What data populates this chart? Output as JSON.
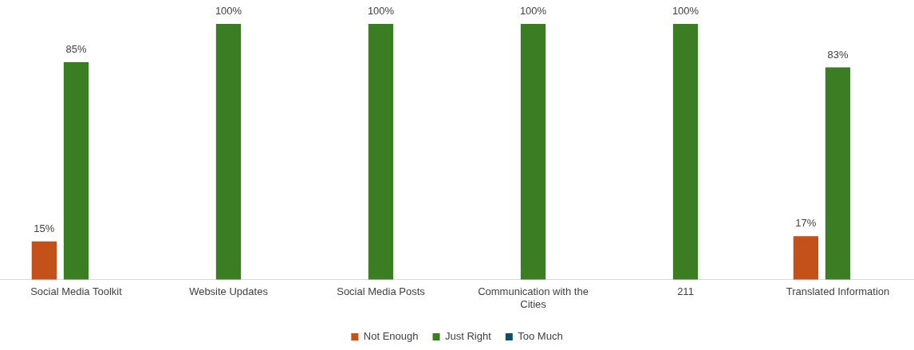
{
  "chart_data": {
    "type": "bar",
    "categories": [
      "Social Media Toolkit",
      "Website Updates",
      "Social Media Posts",
      "Communication with the Cities",
      "211",
      "Translated Information"
    ],
    "series": [
      {
        "name": "Not Enough",
        "color": "#c4501a",
        "values": [
          15,
          null,
          null,
          null,
          null,
          17
        ],
        "value_labels": [
          "15%",
          null,
          null,
          null,
          null,
          "17%"
        ]
      },
      {
        "name": "Just Right",
        "color": "#3b7d23",
        "values": [
          85,
          100,
          100,
          100,
          100,
          83
        ],
        "value_labels": [
          "85%",
          "100%",
          "100%",
          "100%",
          "100%",
          "83%"
        ]
      },
      {
        "name": "Too Much",
        "color": "#0f4f68",
        "values": [
          null,
          null,
          null,
          null,
          null,
          null
        ],
        "value_labels": [
          null,
          null,
          null,
          null,
          null,
          null
        ]
      }
    ],
    "legend": "bottom",
    "grid": false
  }
}
